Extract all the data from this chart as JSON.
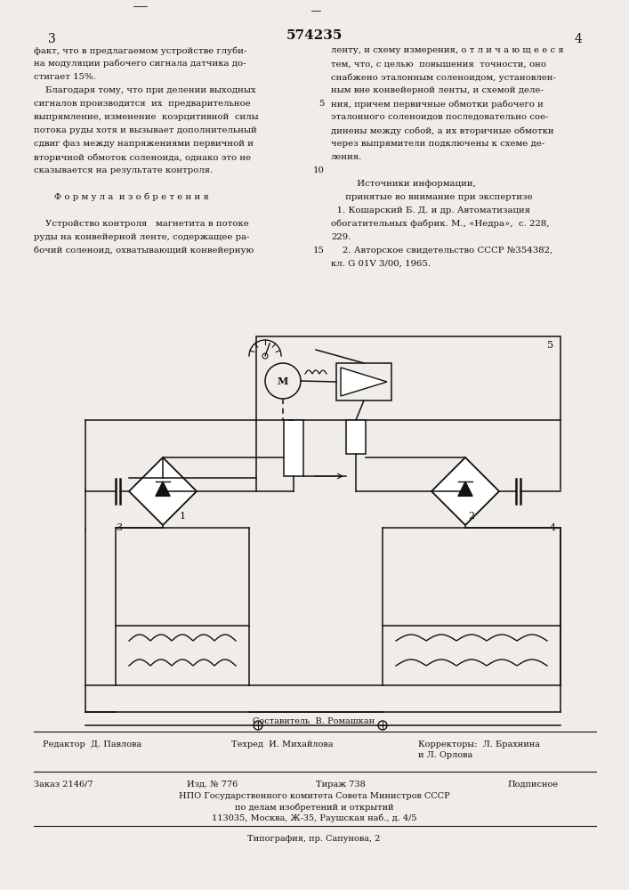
{
  "patent_number": "574235",
  "page_numbers": [
    "3",
    "4"
  ],
  "bg_color": "#f0ede8",
  "text_color": "#111111",
  "left_column_text": [
    "факт, что в предлагаемом устройстве глуби-",
    "на модуляции рабочего сигнала датчика до-",
    "стигает 15%.",
    "    Благодаря тому, что при делении выходных",
    "сигналов производится  их  предварительное",
    "выпрямление, изменение  коэрцитивной  силы",
    "потока руды хотя и вызывает дополнительный",
    "сдвиг фаз между напряжениями первичной и",
    "вторичной обмоток соленоида, однако это не",
    "сказывается на результате контроля.",
    "",
    "       Ф о р м у л а  и з о б р е т е н и я",
    "",
    "    Устройство контроля   магнетита в потоке",
    "руды на конвейерной ленте, содержащее ра-",
    "бочий соленоид, охватывающий конвейерную"
  ],
  "right_column_text": [
    "ленту, и схему измерения, о т л и ч а ю щ е е с я",
    "тем, что, с целью  повышения  точности, оно",
    "снабжено эталонным соленоидом, установлен-",
    "ным вне конвейерной ленты, и схемой деле-",
    "ния, причем первичные обмотки рабочего и",
    "эталонного соленоидов последовательно сое-",
    "динены между собой, а их вторичные обмотки",
    "через выпрямители подключены к схеме де-",
    "ления.",
    "",
    "         Источники информации,",
    "     принятые во внимание при экспертизе",
    "  1. Кошарский Б. Д. и др. Автоматизация",
    "обогатительных фабрик. М., «Недра»,  с. 228,",
    "229.",
    "    2. Авторское свидетельство СССР №354382,",
    "кл. G 01V 3/00, 1965."
  ],
  "line_num_map": {
    "4": "5",
    "9": "10",
    "15": "15"
  },
  "footer_top_text": "Составитель  В. Ромашкан",
  "footer_left": "Редактор  Д. Павлова",
  "footer_middle": "Техред  И. Михайлова",
  "footer_right_corr": "Корректоры:  Л. Брахнина",
  "footer_right_corr2": "и Л. Орлова",
  "footer_order": "Заказ 2146/7",
  "footer_izd": "Изд. № 776",
  "footer_tirazh": "Тираж 738",
  "footer_podpisnoe": "Подписное",
  "footer_npo": "НПО Государственного комитета Совета Министров СССР",
  "footer_npo2": "по делам изобретений и открытий",
  "footer_npo3": "113035, Москва, Ж-35, Раушская наб., д. 4/5",
  "footer_tipografiya": "Типография, пр. Сапунова, 2"
}
